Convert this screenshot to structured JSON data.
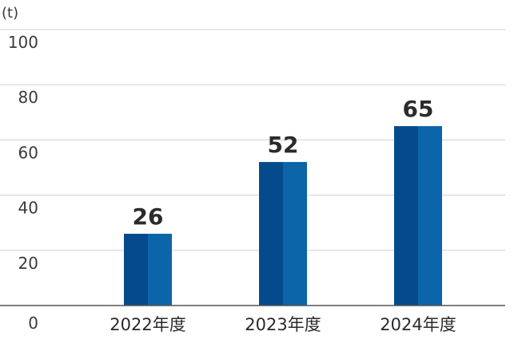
{
  "chart_data": {
    "type": "bar",
    "unit_label": "(t)",
    "categories": [
      "2022年度",
      "2023年度",
      "2024年度"
    ],
    "values": [
      26,
      52,
      65
    ],
    "data_labels": [
      "26",
      "52",
      "65"
    ],
    "ylim": [
      0,
      100
    ],
    "yticks": [
      "0",
      "20",
      "40",
      "60",
      "80",
      "100"
    ],
    "grid": true,
    "colors": {
      "bar_dark": "#054a8c",
      "bar_light": "#0b65a8",
      "grid": "#cfcfcf",
      "axis": "#555555"
    }
  }
}
